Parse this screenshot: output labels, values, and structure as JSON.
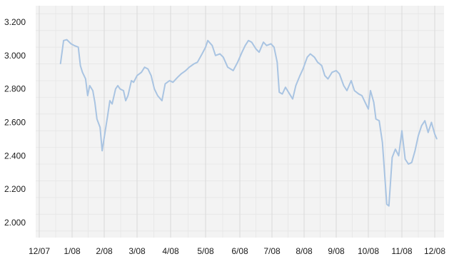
{
  "chart_data": {
    "type": "line",
    "title": "",
    "xlabel": "",
    "ylabel": "",
    "x_ticks": [
      "12/07",
      "1/08",
      "2/08",
      "3/08",
      "4/08",
      "5/08",
      "6/08",
      "7/08",
      "8/08",
      "9/08",
      "10/08",
      "11/08",
      "12/08"
    ],
    "y_ticks": [
      "2.000",
      "2.200",
      "2.400",
      "2.600",
      "2.800",
      "3.000",
      "3.200"
    ],
    "ylim": [
      1950,
      3250
    ],
    "grid": true,
    "series": [
      {
        "color": "#a9c4e2",
        "points": [
          [
            "2007-12-21",
            2950
          ],
          [
            "2007-12-24",
            3090
          ],
          [
            "2007-12-27",
            3095
          ],
          [
            "2007-12-31",
            3070
          ],
          [
            "2008-01-03",
            3060
          ],
          [
            "2008-01-07",
            3050
          ],
          [
            "2008-01-09",
            2940
          ],
          [
            "2008-01-11",
            2900
          ],
          [
            "2008-01-14",
            2860
          ],
          [
            "2008-01-16",
            2760
          ],
          [
            "2008-01-18",
            2820
          ],
          [
            "2008-01-21",
            2790
          ],
          [
            "2008-01-23",
            2720
          ],
          [
            "2008-01-25",
            2620
          ],
          [
            "2008-01-28",
            2570
          ],
          [
            "2008-01-30",
            2430
          ],
          [
            "2008-02-01",
            2510
          ],
          [
            "2008-02-04",
            2640
          ],
          [
            "2008-02-06",
            2730
          ],
          [
            "2008-02-08",
            2710
          ],
          [
            "2008-02-11",
            2800
          ],
          [
            "2008-02-13",
            2820
          ],
          [
            "2008-02-15",
            2800
          ],
          [
            "2008-02-18",
            2790
          ],
          [
            "2008-02-20",
            2730
          ],
          [
            "2008-02-22",
            2760
          ],
          [
            "2008-02-25",
            2850
          ],
          [
            "2008-02-27",
            2840
          ],
          [
            "2008-03-01",
            2880
          ],
          [
            "2008-03-05",
            2900
          ],
          [
            "2008-03-08",
            2930
          ],
          [
            "2008-03-11",
            2920
          ],
          [
            "2008-03-14",
            2880
          ],
          [
            "2008-03-17",
            2800
          ],
          [
            "2008-03-20",
            2760
          ],
          [
            "2008-03-24",
            2730
          ],
          [
            "2008-03-27",
            2830
          ],
          [
            "2008-03-31",
            2850
          ],
          [
            "2008-04-03",
            2840
          ],
          [
            "2008-04-07",
            2870
          ],
          [
            "2008-04-10",
            2890
          ],
          [
            "2008-04-14",
            2910
          ],
          [
            "2008-04-17",
            2930
          ],
          [
            "2008-04-21",
            2950
          ],
          [
            "2008-04-24",
            2960
          ],
          [
            "2008-04-28",
            3010
          ],
          [
            "2008-05-01",
            3050
          ],
          [
            "2008-05-03",
            3090
          ],
          [
            "2008-05-07",
            3060
          ],
          [
            "2008-05-10",
            3000
          ],
          [
            "2008-05-14",
            3010
          ],
          [
            "2008-05-17",
            2990
          ],
          [
            "2008-05-21",
            2930
          ],
          [
            "2008-05-26",
            2910
          ],
          [
            "2008-05-30",
            2960
          ],
          [
            "2008-06-03",
            3020
          ],
          [
            "2008-06-06",
            3060
          ],
          [
            "2008-06-09",
            3090
          ],
          [
            "2008-06-12",
            3080
          ],
          [
            "2008-06-16",
            3040
          ],
          [
            "2008-06-19",
            3020
          ],
          [
            "2008-06-23",
            3080
          ],
          [
            "2008-06-26",
            3060
          ],
          [
            "2008-06-30",
            3070
          ],
          [
            "2008-07-03",
            3050
          ],
          [
            "2008-07-06",
            2960
          ],
          [
            "2008-07-08",
            2780
          ],
          [
            "2008-07-11",
            2770
          ],
          [
            "2008-07-14",
            2810
          ],
          [
            "2008-07-17",
            2780
          ],
          [
            "2008-07-21",
            2740
          ],
          [
            "2008-07-24",
            2820
          ],
          [
            "2008-07-28",
            2880
          ],
          [
            "2008-07-31",
            2920
          ],
          [
            "2008-08-04",
            2990
          ],
          [
            "2008-08-07",
            3010
          ],
          [
            "2008-08-11",
            2990
          ],
          [
            "2008-08-14",
            2960
          ],
          [
            "2008-08-18",
            2940
          ],
          [
            "2008-08-21",
            2880
          ],
          [
            "2008-08-24",
            2860
          ],
          [
            "2008-08-28",
            2900
          ],
          [
            "2008-09-01",
            2910
          ],
          [
            "2008-09-04",
            2890
          ],
          [
            "2008-09-08",
            2820
          ],
          [
            "2008-09-11",
            2790
          ],
          [
            "2008-09-15",
            2850
          ],
          [
            "2008-09-18",
            2790
          ],
          [
            "2008-09-22",
            2770
          ],
          [
            "2008-09-25",
            2760
          ],
          [
            "2008-09-28",
            2720
          ],
          [
            "2008-10-01",
            2680
          ],
          [
            "2008-10-03",
            2790
          ],
          [
            "2008-10-06",
            2720
          ],
          [
            "2008-10-08",
            2620
          ],
          [
            "2008-10-11",
            2610
          ],
          [
            "2008-10-14",
            2480
          ],
          [
            "2008-10-16",
            2300
          ],
          [
            "2008-10-18",
            2110
          ],
          [
            "2008-10-20",
            2100
          ],
          [
            "2008-10-23",
            2390
          ],
          [
            "2008-10-26",
            2440
          ],
          [
            "2008-10-29",
            2400
          ],
          [
            "2008-11-01",
            2550
          ],
          [
            "2008-11-04",
            2380
          ],
          [
            "2008-11-07",
            2350
          ],
          [
            "2008-11-10",
            2360
          ],
          [
            "2008-11-13",
            2430
          ],
          [
            "2008-11-16",
            2520
          ],
          [
            "2008-11-19",
            2580
          ],
          [
            "2008-11-22",
            2610
          ],
          [
            "2008-11-25",
            2540
          ],
          [
            "2008-11-28",
            2600
          ],
          [
            "2008-12-01",
            2530
          ],
          [
            "2008-12-03",
            2500
          ]
        ]
      }
    ]
  }
}
